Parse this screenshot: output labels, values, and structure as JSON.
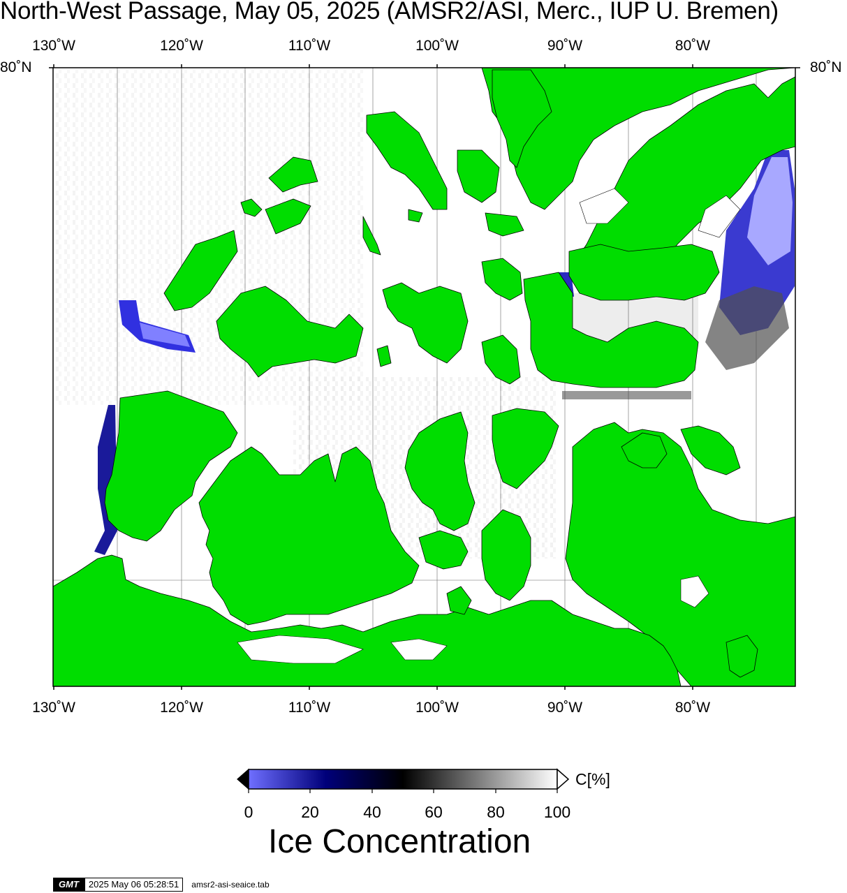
{
  "map": {
    "title": "North-West Passage, May 05, 2025 (AMSR2/ASI, Merc., IUP U. Bremen)",
    "longitude_labels": [
      "130˚W",
      "120˚W",
      "110˚W",
      "100˚W",
      "90˚W",
      "80˚W"
    ],
    "latitude_label": "80˚N",
    "land_color": "#00dd00",
    "water_color": "#ffffff",
    "low_concentration_color": "#7777ff"
  },
  "colorbar": {
    "ticks": [
      "0",
      "20",
      "40",
      "60",
      "80",
      "100"
    ],
    "unit": "C[%]",
    "title": "Ice Concentration",
    "stops": [
      "#6666ff",
      "#00006e",
      "#000000",
      "#7f7f7f",
      "#ffffff"
    ]
  },
  "footer": {
    "logo": "GMT",
    "timestamp": "2025 May 06 05:28:51",
    "filename": "amsr2-asi-seaice.tab"
  }
}
